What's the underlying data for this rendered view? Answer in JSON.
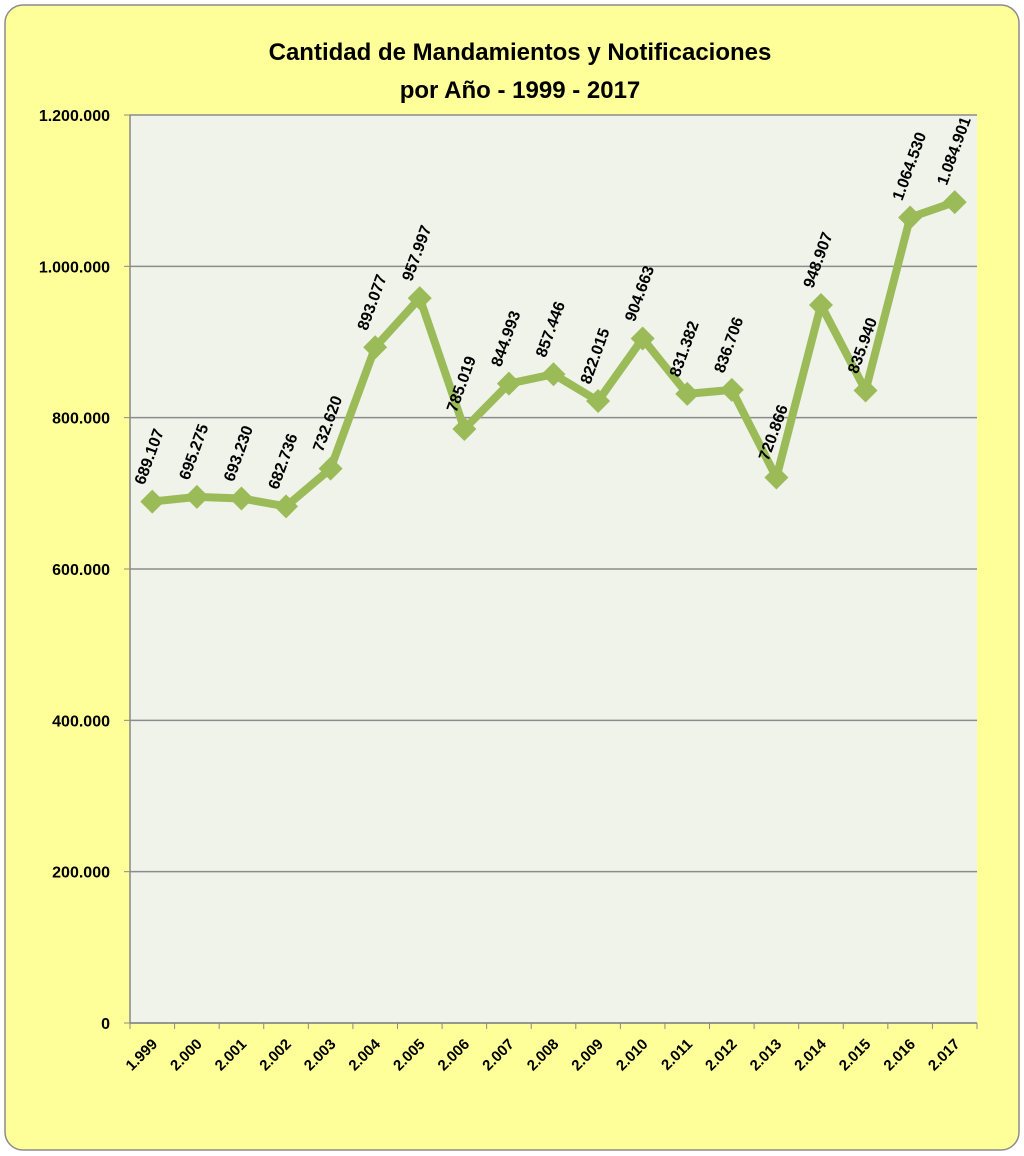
{
  "chart_data": {
    "type": "line",
    "title": [
      "Cantidad de Mandamientos y Notificaciones",
      "por Año - 1999 - 2017"
    ],
    "categories": [
      "1.999",
      "2.000",
      "2.001",
      "2.002",
      "2.003",
      "2.004",
      "2.005",
      "2.006",
      "2.007",
      "2.008",
      "2.009",
      "2.010",
      "2.011",
      "2.012",
      "2.013",
      "2.014",
      "2.015",
      "2.016",
      "2.017"
    ],
    "series": [
      {
        "color": "#9bbb59",
        "values": [
          689107,
          695275,
          693230,
          682736,
          732620,
          893077,
          957997,
          785019,
          844993,
          857446,
          822015,
          904663,
          831382,
          836706,
          720866,
          948907,
          835940,
          1064530,
          1084901
        ],
        "value_labels": [
          "689.107",
          "695.275",
          "693.230",
          "682.736",
          "732.620",
          "893.077",
          "957.997",
          "785.019",
          "844.993",
          "857.446",
          "822.015",
          "904.663",
          "831.382",
          "836.706",
          "720.866",
          "948.907",
          "835.940",
          "1.064.530",
          "1.084.901"
        ]
      }
    ],
    "ylim": [
      0,
      1200000
    ],
    "yticks": [
      0,
      {
        "value": 200000,
        "label": "200.000"
      },
      {
        "value": 400000,
        "label": "400.000"
      },
      {
        "value": 600000,
        "label": "600.000"
      },
      {
        "value": 800000,
        "label": "800.000"
      },
      {
        "value": 1000000,
        "label": "1.000.000"
      },
      {
        "value": 1200000,
        "label": "1.200.000"
      }
    ],
    "grid": true
  }
}
